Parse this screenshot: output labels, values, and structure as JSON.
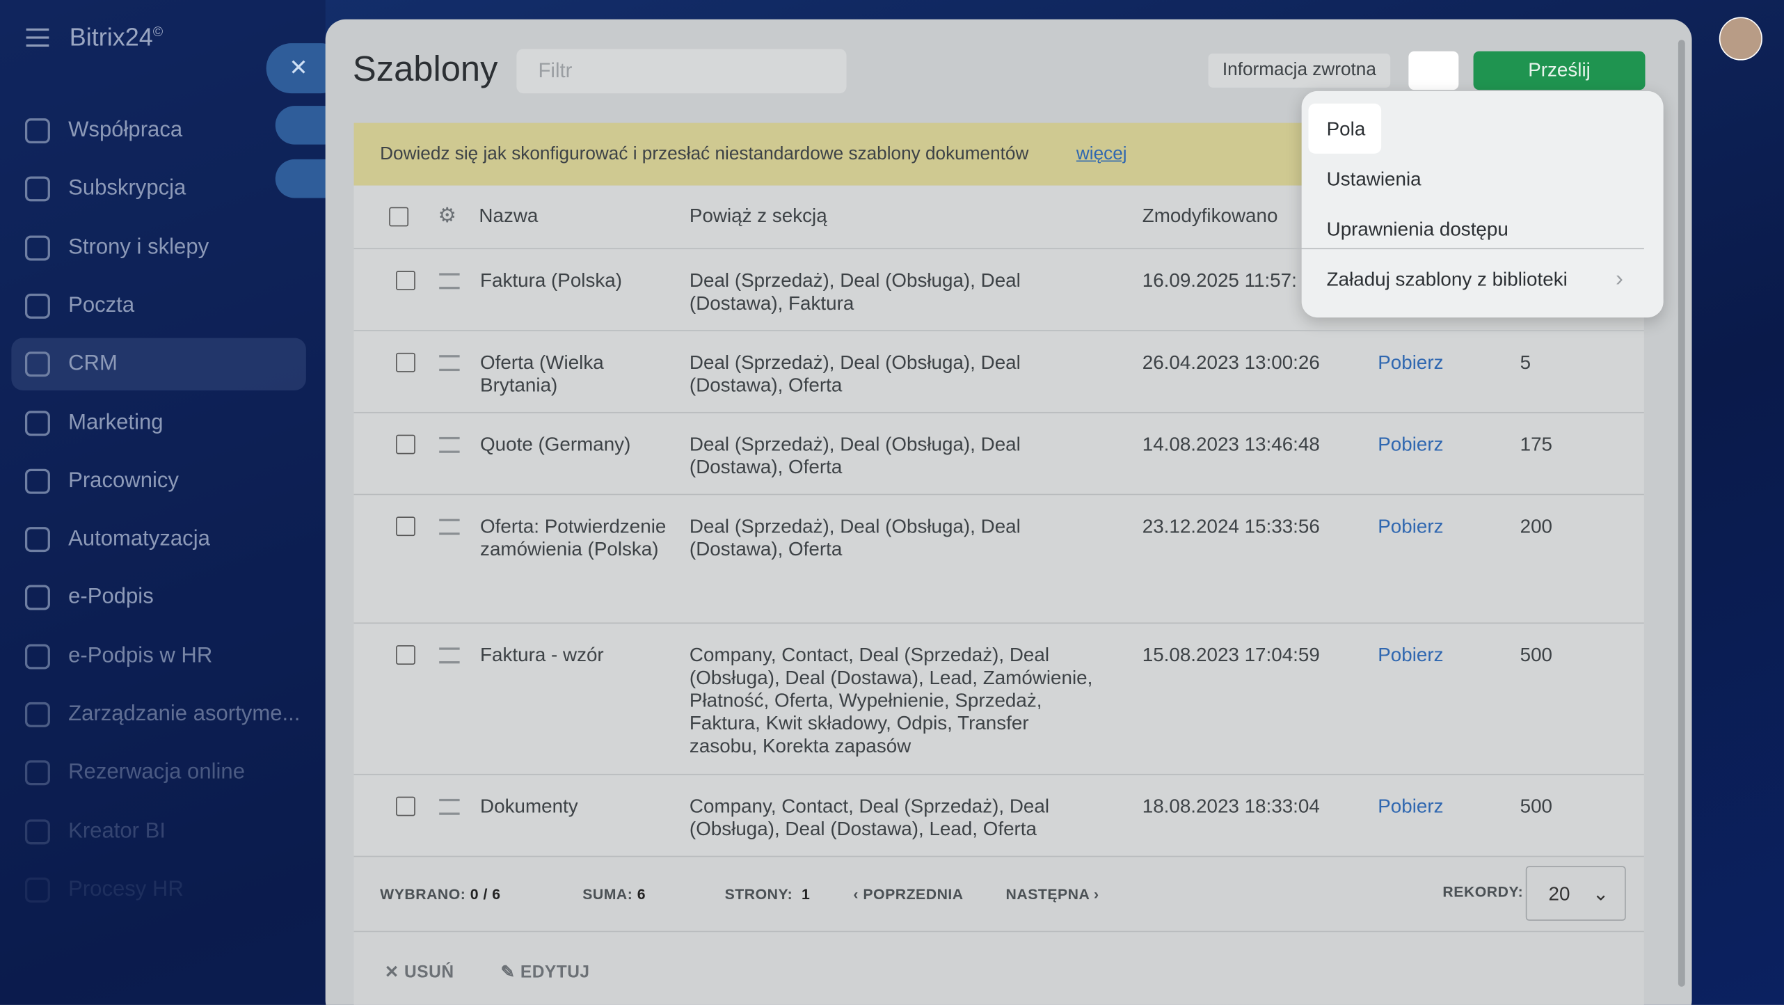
{
  "sidebar": {
    "logo": "Bitrix24",
    "logo_mark": "©",
    "items": [
      "Współpraca",
      "Subskrypcja",
      "Strony i sklepy",
      "Poczta",
      "CRM",
      "Marketing",
      "Pracownicy",
      "Automatyzacja",
      "e-Podpis",
      "e-Podpis w HR",
      "Zarządzanie asortyme...",
      "Rezerwacja online",
      "Kreator BI",
      "Procesy HR"
    ]
  },
  "header": {
    "title": "Szablony",
    "filter_placeholder": "Filtr",
    "feedback": "Informacja zwrotna",
    "submit": "Prześlij"
  },
  "menu": {
    "items": [
      "Pola",
      "Ustawienia",
      "Uprawnienia dostępu",
      "Załaduj szablony z biblioteki"
    ]
  },
  "banner": {
    "text": "Dowiedz się jak skonfigurować i przesłać niestandardowe szablony dokumentów",
    "link": "więcej"
  },
  "table": {
    "columns": [
      "Nazwa",
      "Powiąż z sekcją",
      "Zmodyfikowano"
    ],
    "rows": [
      {
        "name": "Faktura (Polska)",
        "sections": "Deal (Sprzedaż), Deal (Obsługa), Deal (Dostawa), Faktura",
        "modified": "16.09.2025 11:57:"
      },
      {
        "name": "Oferta (Wielka Brytania)",
        "sections": "Deal (Sprzedaż), Deal (Obsługa), Deal (Dostawa), Oferta",
        "modified": "26.04.2023 13:00:26",
        "link": "Pobierz",
        "count": "5"
      },
      {
        "name": "Quote (Germany)",
        "sections": "Deal (Sprzedaż), Deal (Obsługa), Deal (Dostawa), Oferta",
        "modified": "14.08.2023 13:46:48",
        "link": "Pobierz",
        "count": "175"
      },
      {
        "name": "Oferta: Potwierdzenie zamówienia (Polska)",
        "sections": "Deal (Sprzedaż), Deal (Obsługa), Deal (Dostawa), Oferta",
        "modified": "23.12.2024 15:33:56",
        "link": "Pobierz",
        "count": "200"
      },
      {
        "name": "Faktura - wzór",
        "sections": "Company, Contact, Deal (Sprzedaż), Deal (Obsługa), Deal (Dostawa), Lead, Zamówienie, Płatność, Oferta, Wypełnienie, Sprzedaż, Faktura, Kwit składowy, Odpis, Transfer zasobu, Korekta zapasów",
        "modified": "15.08.2023 17:04:59",
        "link": "Pobierz",
        "count": "500"
      },
      {
        "name": "Dokumenty",
        "sections": "Company, Contact, Deal (Sprzedaż), Deal (Obsługa), Deal (Dostawa), Lead, Oferta",
        "modified": "18.08.2023 18:33:04",
        "link": "Pobierz",
        "count": "500"
      }
    ]
  },
  "footer": {
    "selected_label": "WYBRANO:",
    "selected": "0 / 6",
    "sum_label": "SUMA:",
    "sum": "6",
    "pages_label": "STRONY:",
    "pages": "1",
    "prev": "POPRZEDNIA",
    "next": "NASTĘPNA",
    "records_label": "REKORDY:",
    "records": "20"
  },
  "actions": {
    "delete": "USUŃ",
    "edit": "EDYTUJ"
  }
}
